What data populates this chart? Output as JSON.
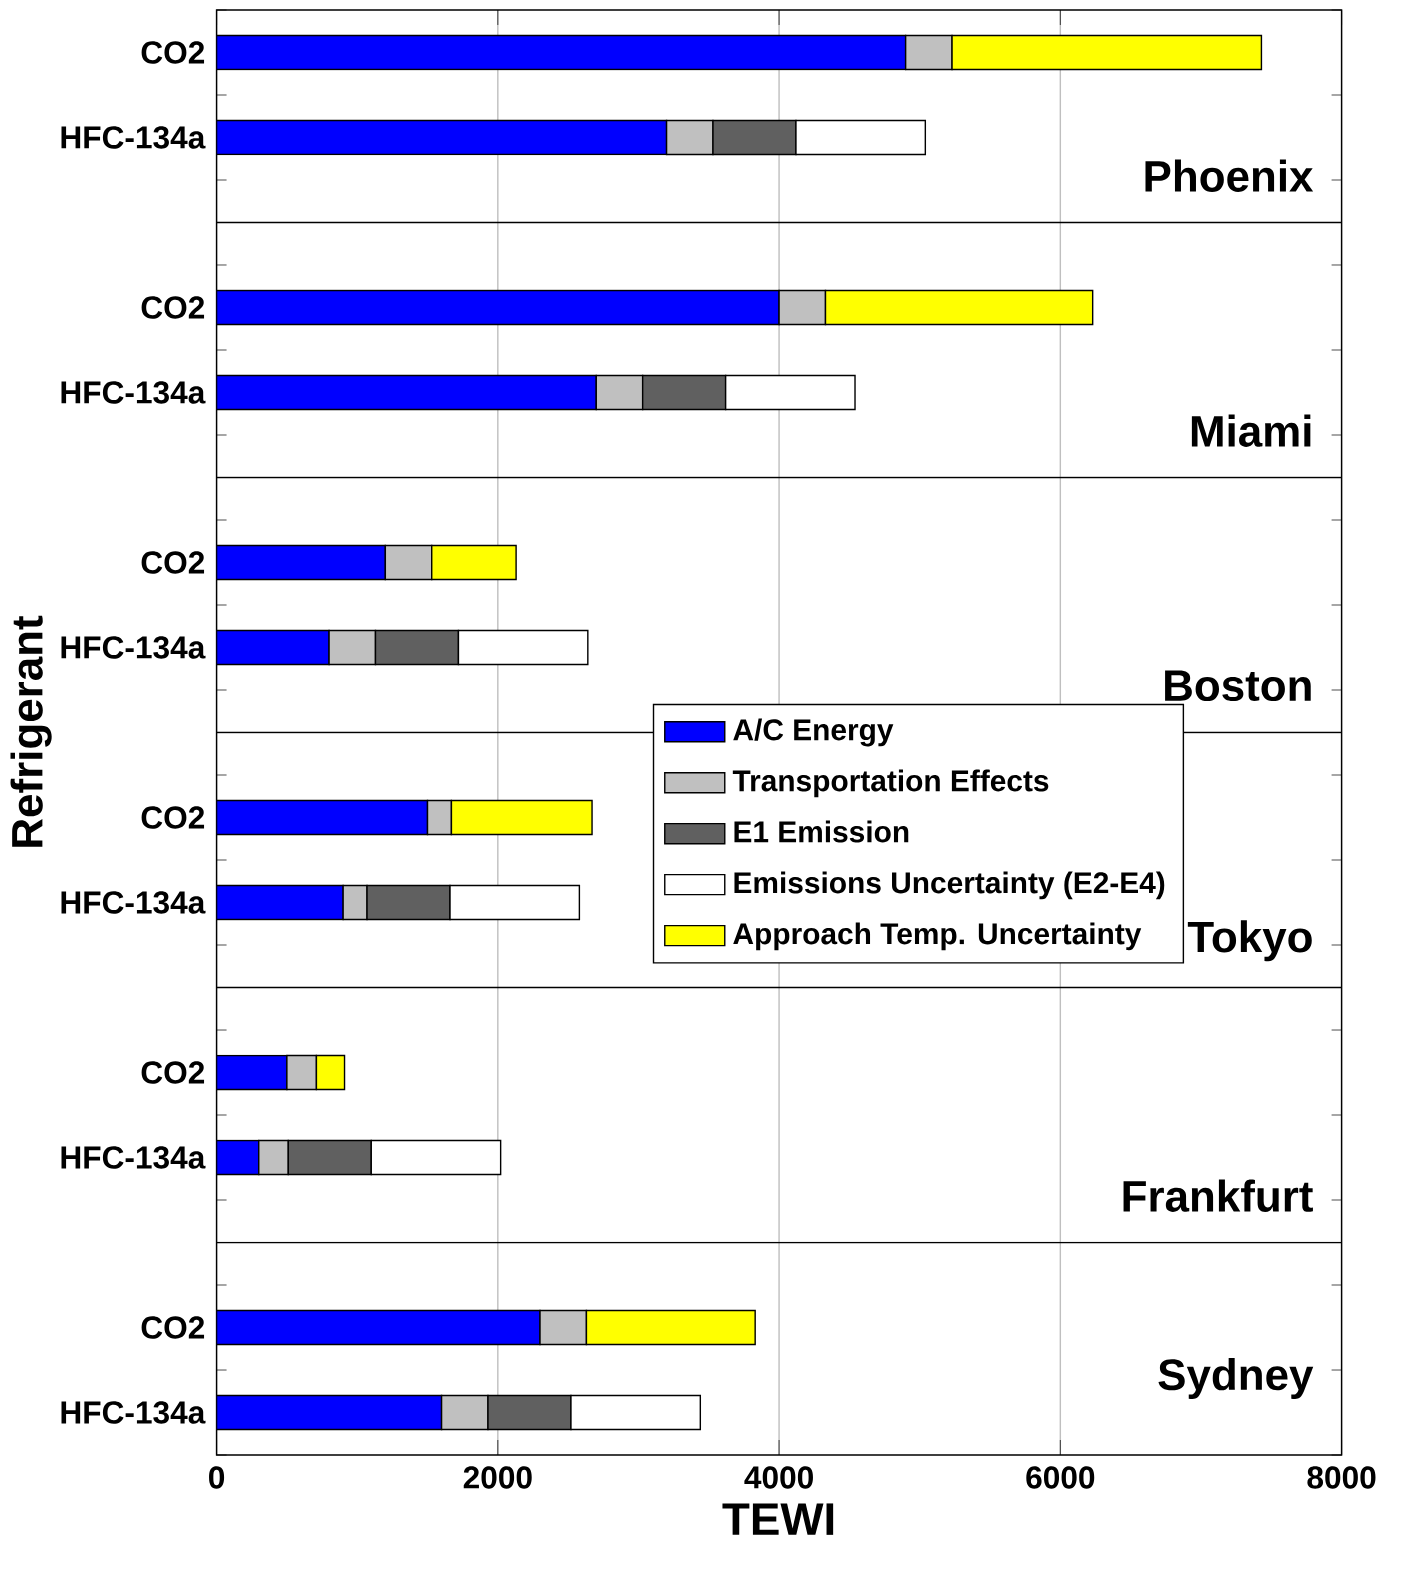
{
  "chart_data": {
    "type": "bar",
    "orientation": "horizontal",
    "stacked": true,
    "xlabel": "TEWI",
    "ylabel": "Refrigerant",
    "categories": [
      "CO2",
      "HFC-134a",
      null,
      "CO2",
      "HFC-134a",
      null,
      "CO2",
      "HFC-134a",
      null,
      "CO2",
      "HFC-134a",
      null,
      "CO2",
      "HFC-134a",
      null,
      "CO2",
      "HFC-134a"
    ],
    "series": [
      {
        "name": "A/C Energy",
        "color": "#0000ff",
        "values": [
          4900,
          3200,
          null,
          4000,
          2700,
          null,
          1200,
          800,
          null,
          1500,
          900,
          null,
          500,
          300,
          null,
          2300,
          1600
        ]
      },
      {
        "name": "Transportation Effects",
        "color": "#c0c0c0",
        "values": [
          330,
          330,
          null,
          330,
          330,
          null,
          330,
          330,
          null,
          170,
          170,
          null,
          210,
          210,
          null,
          330,
          330
        ]
      },
      {
        "name": "E1 Emission",
        "color": "#606060",
        "values": [
          null,
          590,
          null,
          null,
          590,
          null,
          null,
          590,
          null,
          null,
          590,
          null,
          null,
          590,
          null,
          null,
          590
        ]
      },
      {
        "name": "Emissions Uncertainty (E2-E4)",
        "color": "#ffffff",
        "values": [
          null,
          920,
          null,
          null,
          920,
          null,
          null,
          920,
          null,
          null,
          920,
          null,
          null,
          920,
          null,
          null,
          920
        ]
      },
      {
        "name": "Approach Temp. Uncertainty",
        "color": "#ffff00",
        "values": [
          2200,
          null,
          null,
          1900,
          null,
          null,
          600,
          null,
          null,
          1000,
          null,
          null,
          200,
          null,
          null,
          1200,
          null
        ]
      }
    ],
    "annotations": [
      "Phoenix",
      "Miami",
      "Boston",
      "Tokyo",
      "Frankfurt",
      "Sydney"
    ],
    "xlim": [
      0,
      8000
    ],
    "xticks": [
      0,
      2000,
      4000,
      6000,
      8000
    ],
    "grid": "x",
    "legend": "right"
  }
}
